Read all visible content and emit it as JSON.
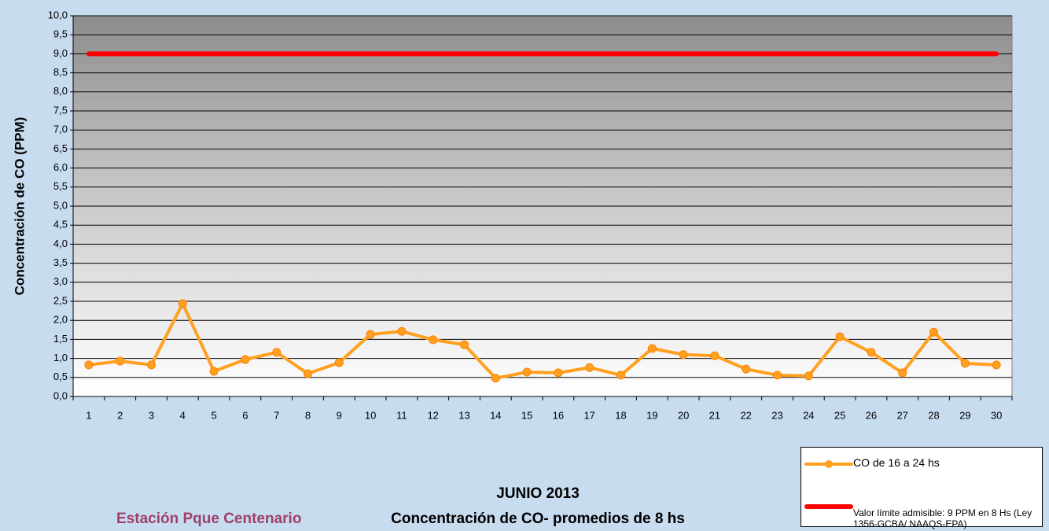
{
  "chart_data": {
    "type": "line",
    "title": "JUNIO 2013",
    "subtitle": "Concentración de CO- promedios de 8 hs",
    "annotation": "Estación Pque Centenario",
    "y_label": "Concentración de CO (PPM)",
    "categories": [
      "1",
      "2",
      "3",
      "4",
      "5",
      "6",
      "7",
      "8",
      "9",
      "10",
      "11",
      "12",
      "13",
      "14",
      "15",
      "16",
      "17",
      "18",
      "19",
      "20",
      "21",
      "22",
      "23",
      "24",
      "25",
      "26",
      "27",
      "28",
      "29",
      "30"
    ],
    "series": [
      {
        "name": "CO de 16 a 24 hs",
        "color": "#ffa020",
        "values": [
          0.83,
          0.93,
          0.83,
          2.44,
          0.66,
          0.97,
          1.16,
          0.6,
          0.89,
          1.63,
          1.71,
          1.49,
          1.36,
          0.48,
          0.64,
          0.62,
          0.76,
          0.56,
          1.26,
          1.1,
          1.07,
          0.72,
          0.56,
          0.54,
          1.57,
          1.16,
          0.62,
          1.69,
          0.87,
          0.83
        ]
      },
      {
        "name": "Valor límite admisible: 9 PPM en 8 Hs (Ley 1356-GCBA/ NAAQS-EPA)",
        "color": "#ff0000",
        "values": [
          9,
          9,
          9,
          9,
          9,
          9,
          9,
          9,
          9,
          9,
          9,
          9,
          9,
          9,
          9,
          9,
          9,
          9,
          9,
          9,
          9,
          9,
          9,
          9,
          9,
          9,
          9,
          9,
          9,
          9
        ]
      }
    ],
    "ylim": [
      0,
      10
    ],
    "yticks": [
      {
        "value": 0,
        "label": "0,0"
      },
      {
        "value": 0.5,
        "label": "0,5"
      },
      {
        "value": 1,
        "label": "1,0"
      },
      {
        "value": 1.5,
        "label": "1,5"
      },
      {
        "value": 2,
        "label": "2,0"
      },
      {
        "value": 2.5,
        "label": "2,5"
      },
      {
        "value": 3,
        "label": "3,0"
      },
      {
        "value": 3.5,
        "label": "3,5"
      },
      {
        "value": 4,
        "label": "4,0"
      },
      {
        "value": 4.5,
        "label": "4,5"
      },
      {
        "value": 5,
        "label": "5,0"
      },
      {
        "value": 5.5,
        "label": "5,5"
      },
      {
        "value": 6,
        "label": "6,0"
      },
      {
        "value": 6.5,
        "label": "6,5"
      },
      {
        "value": 7,
        "label": "7,0"
      },
      {
        "value": 7.5,
        "label": "7,5"
      },
      {
        "value": 8,
        "label": "8,0"
      },
      {
        "value": 8.5,
        "label": "8,5"
      },
      {
        "value": 9,
        "label": "9,0"
      },
      {
        "value": 9.5,
        "label": "9,5"
      },
      {
        "value": 10,
        "label": "10,0"
      }
    ],
    "grid": true
  }
}
